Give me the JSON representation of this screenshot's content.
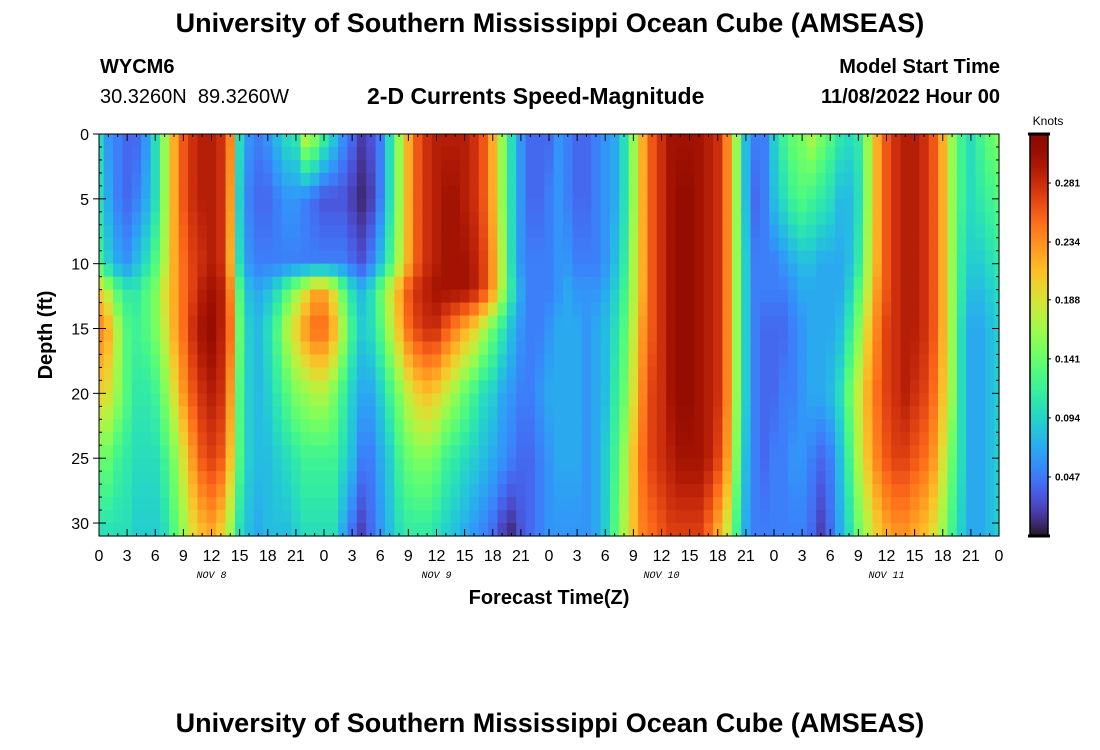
{
  "page": {
    "title": "University of Southern Mississippi Ocean Cube (AMSEAS)",
    "footer_title": "University of Southern Mississippi Ocean Cube (AMSEAS)",
    "station_id": "WYCM6",
    "station_coords": "30.3260N  89.3260W",
    "model_start_label": "Model Start Time",
    "model_start_value": "11/08/2022 Hour 00"
  },
  "chart_data": {
    "type": "heatmap",
    "title": "2-D Currents Speed-Magnitude",
    "xlabel": "Forecast Time(Z)",
    "ylabel": "Depth (ft)",
    "x_range_hours": [
      0,
      96
    ],
    "ylim": [
      0,
      31
    ],
    "y_ticks": [
      0,
      5,
      10,
      15,
      20,
      25,
      30
    ],
    "x_tick_hours": [
      0,
      3,
      6,
      9,
      12,
      15,
      18,
      21,
      24,
      27,
      30,
      33,
      36,
      39,
      42,
      45,
      48,
      51,
      54,
      57,
      60,
      63,
      66,
      69,
      72,
      75,
      78,
      81,
      84,
      87,
      90,
      93,
      96
    ],
    "x_tick_labels": [
      "0",
      "3",
      "6",
      "9",
      "12",
      "15",
      "18",
      "21",
      "0",
      "3",
      "6",
      "9",
      "12",
      "15",
      "18",
      "21",
      "0",
      "3",
      "6",
      "9",
      "12",
      "15",
      "18",
      "21",
      "0",
      "3",
      "6",
      "9",
      "12",
      "15",
      "18",
      "21",
      "0"
    ],
    "day_labels": [
      {
        "hour": 12,
        "text": "NOV 8"
      },
      {
        "hour": 36,
        "text": "NOV 9"
      },
      {
        "hour": 60,
        "text": "NOV 10"
      },
      {
        "hour": 84,
        "text": "NOV 11"
      }
    ],
    "colorbar": {
      "unit": "Knots",
      "min": 0.0,
      "max": 0.32,
      "ticks": [
        0.047,
        0.094,
        0.141,
        0.188,
        0.234,
        0.281
      ],
      "tick_labels": [
        "0.047",
        "0.094",
        "0.141",
        "0.188",
        "0.234",
        "0.281"
      ],
      "colormap": "turbo"
    },
    "profile_depths_ft": [
      0,
      5,
      10,
      12,
      15,
      20,
      25,
      31
    ],
    "profile_hours": [
      0,
      1,
      2,
      3,
      4,
      5,
      6,
      7,
      8,
      9,
      10,
      11,
      12,
      13,
      14,
      15,
      16,
      17,
      18,
      19,
      20,
      21,
      22,
      23,
      24,
      25,
      26,
      27,
      28,
      29,
      30,
      31,
      32,
      33,
      34,
      35,
      36,
      37,
      38,
      39,
      40,
      41,
      42,
      43,
      44,
      45,
      46,
      47,
      48,
      49,
      50,
      51,
      52,
      53,
      54,
      55,
      56,
      57,
      58,
      59,
      60,
      61,
      62,
      63,
      64,
      65,
      66,
      67,
      68,
      69,
      70,
      71,
      72,
      73,
      74,
      75,
      76,
      77,
      78,
      79,
      80,
      81,
      82,
      83,
      84,
      85,
      86,
      87,
      88,
      89,
      90,
      91,
      92,
      93,
      94,
      95,
      96
    ],
    "values_knots": [
      [
        0.1,
        0.06,
        0.05,
        0.04,
        0.04,
        0.06,
        0.1,
        0.16,
        0.22,
        0.26,
        0.28,
        0.29,
        0.29,
        0.28,
        0.24,
        0.1,
        0.06,
        0.05,
        0.06,
        0.08,
        0.1,
        0.11,
        0.18,
        0.16,
        0.12,
        0.09,
        0.06,
        0.04,
        0.02,
        0.03,
        0.05,
        0.1,
        0.16,
        0.22,
        0.26,
        0.28,
        0.29,
        0.29,
        0.29,
        0.29,
        0.28,
        0.26,
        0.22,
        0.16,
        0.1,
        0.06,
        0.04,
        0.04,
        0.04,
        0.06,
        0.05,
        0.04,
        0.04,
        0.05,
        0.06,
        0.07,
        0.1,
        0.16,
        0.22,
        0.26,
        0.28,
        0.3,
        0.3,
        0.3,
        0.3,
        0.29,
        0.28,
        0.24,
        0.16,
        0.08,
        0.05,
        0.05,
        0.09,
        0.12,
        0.14,
        0.15,
        0.17,
        0.15,
        0.13,
        0.11,
        0.1,
        0.11,
        0.16,
        0.22,
        0.26,
        0.28,
        0.29,
        0.29,
        0.28,
        0.26,
        0.22,
        0.16,
        0.12,
        0.1,
        0.12,
        0.14,
        0.15
      ],
      [
        0.1,
        0.07,
        0.05,
        0.04,
        0.05,
        0.07,
        0.1,
        0.16,
        0.22,
        0.26,
        0.28,
        0.29,
        0.29,
        0.28,
        0.23,
        0.09,
        0.05,
        0.04,
        0.04,
        0.05,
        0.06,
        0.06,
        0.05,
        0.04,
        0.03,
        0.03,
        0.03,
        0.02,
        0.01,
        0.02,
        0.05,
        0.1,
        0.16,
        0.22,
        0.26,
        0.28,
        0.29,
        0.3,
        0.3,
        0.29,
        0.28,
        0.26,
        0.22,
        0.16,
        0.1,
        0.06,
        0.04,
        0.04,
        0.05,
        0.06,
        0.05,
        0.04,
        0.04,
        0.05,
        0.06,
        0.07,
        0.1,
        0.16,
        0.22,
        0.26,
        0.28,
        0.3,
        0.31,
        0.31,
        0.3,
        0.29,
        0.28,
        0.24,
        0.16,
        0.08,
        0.04,
        0.05,
        0.08,
        0.1,
        0.12,
        0.13,
        0.12,
        0.11,
        0.1,
        0.08,
        0.08,
        0.1,
        0.16,
        0.22,
        0.26,
        0.28,
        0.29,
        0.29,
        0.28,
        0.26,
        0.22,
        0.16,
        0.12,
        0.1,
        0.11,
        0.12,
        0.13
      ],
      [
        0.12,
        0.09,
        0.07,
        0.06,
        0.08,
        0.1,
        0.13,
        0.17,
        0.22,
        0.25,
        0.27,
        0.28,
        0.29,
        0.28,
        0.22,
        0.1,
        0.06,
        0.05,
        0.05,
        0.05,
        0.05,
        0.05,
        0.05,
        0.05,
        0.05,
        0.05,
        0.05,
        0.04,
        0.03,
        0.05,
        0.08,
        0.12,
        0.17,
        0.22,
        0.26,
        0.28,
        0.29,
        0.3,
        0.3,
        0.3,
        0.29,
        0.27,
        0.23,
        0.17,
        0.1,
        0.06,
        0.05,
        0.05,
        0.05,
        0.06,
        0.06,
        0.05,
        0.05,
        0.05,
        0.06,
        0.08,
        0.11,
        0.17,
        0.22,
        0.26,
        0.28,
        0.3,
        0.31,
        0.31,
        0.3,
        0.29,
        0.28,
        0.24,
        0.16,
        0.09,
        0.05,
        0.05,
        0.05,
        0.06,
        0.07,
        0.08,
        0.08,
        0.07,
        0.07,
        0.07,
        0.08,
        0.11,
        0.17,
        0.22,
        0.26,
        0.28,
        0.29,
        0.29,
        0.28,
        0.26,
        0.22,
        0.16,
        0.11,
        0.09,
        0.09,
        0.1,
        0.11
      ],
      [
        0.2,
        0.17,
        0.13,
        0.11,
        0.11,
        0.13,
        0.15,
        0.19,
        0.22,
        0.25,
        0.27,
        0.29,
        0.3,
        0.29,
        0.24,
        0.13,
        0.08,
        0.07,
        0.08,
        0.1,
        0.13,
        0.16,
        0.19,
        0.22,
        0.22,
        0.19,
        0.14,
        0.1,
        0.08,
        0.1,
        0.14,
        0.18,
        0.22,
        0.26,
        0.28,
        0.29,
        0.3,
        0.3,
        0.3,
        0.3,
        0.29,
        0.27,
        0.23,
        0.17,
        0.11,
        0.07,
        0.05,
        0.05,
        0.05,
        0.06,
        0.07,
        0.06,
        0.06,
        0.06,
        0.07,
        0.09,
        0.12,
        0.17,
        0.22,
        0.26,
        0.28,
        0.3,
        0.31,
        0.31,
        0.3,
        0.29,
        0.28,
        0.24,
        0.16,
        0.09,
        0.05,
        0.05,
        0.05,
        0.05,
        0.06,
        0.07,
        0.07,
        0.07,
        0.07,
        0.07,
        0.09,
        0.13,
        0.18,
        0.23,
        0.26,
        0.28,
        0.29,
        0.29,
        0.28,
        0.26,
        0.22,
        0.16,
        0.11,
        0.08,
        0.08,
        0.09,
        0.1
      ],
      [
        0.24,
        0.22,
        0.17,
        0.13,
        0.12,
        0.13,
        0.15,
        0.18,
        0.22,
        0.25,
        0.28,
        0.3,
        0.31,
        0.29,
        0.25,
        0.14,
        0.09,
        0.08,
        0.1,
        0.13,
        0.17,
        0.2,
        0.23,
        0.25,
        0.25,
        0.22,
        0.17,
        0.12,
        0.09,
        0.1,
        0.13,
        0.17,
        0.21,
        0.25,
        0.27,
        0.28,
        0.28,
        0.26,
        0.24,
        0.22,
        0.2,
        0.17,
        0.14,
        0.11,
        0.08,
        0.06,
        0.05,
        0.05,
        0.06,
        0.07,
        0.07,
        0.07,
        0.06,
        0.07,
        0.08,
        0.1,
        0.13,
        0.18,
        0.23,
        0.26,
        0.28,
        0.3,
        0.31,
        0.31,
        0.3,
        0.29,
        0.28,
        0.24,
        0.16,
        0.09,
        0.05,
        0.04,
        0.04,
        0.04,
        0.05,
        0.06,
        0.07,
        0.07,
        0.07,
        0.08,
        0.11,
        0.15,
        0.2,
        0.24,
        0.27,
        0.28,
        0.29,
        0.29,
        0.28,
        0.26,
        0.22,
        0.16,
        0.1,
        0.07,
        0.07,
        0.08,
        0.09
      ],
      [
        0.2,
        0.19,
        0.16,
        0.13,
        0.11,
        0.11,
        0.12,
        0.15,
        0.19,
        0.23,
        0.26,
        0.28,
        0.29,
        0.28,
        0.23,
        0.13,
        0.09,
        0.08,
        0.09,
        0.11,
        0.13,
        0.15,
        0.16,
        0.17,
        0.17,
        0.15,
        0.12,
        0.09,
        0.07,
        0.07,
        0.09,
        0.12,
        0.15,
        0.18,
        0.2,
        0.21,
        0.2,
        0.18,
        0.16,
        0.14,
        0.12,
        0.1,
        0.09,
        0.07,
        0.06,
        0.05,
        0.05,
        0.06,
        0.07,
        0.07,
        0.07,
        0.07,
        0.06,
        0.07,
        0.08,
        0.11,
        0.14,
        0.19,
        0.24,
        0.27,
        0.28,
        0.3,
        0.31,
        0.31,
        0.3,
        0.29,
        0.28,
        0.24,
        0.16,
        0.09,
        0.05,
        0.04,
        0.04,
        0.05,
        0.05,
        0.06,
        0.07,
        0.07,
        0.08,
        0.1,
        0.14,
        0.18,
        0.22,
        0.25,
        0.27,
        0.28,
        0.29,
        0.28,
        0.27,
        0.25,
        0.21,
        0.16,
        0.1,
        0.07,
        0.07,
        0.08,
        0.09
      ],
      [
        0.14,
        0.14,
        0.12,
        0.11,
        0.1,
        0.1,
        0.1,
        0.12,
        0.15,
        0.19,
        0.23,
        0.26,
        0.27,
        0.26,
        0.21,
        0.13,
        0.09,
        0.08,
        0.08,
        0.09,
        0.1,
        0.11,
        0.12,
        0.12,
        0.12,
        0.12,
        0.1,
        0.08,
        0.05,
        0.05,
        0.07,
        0.09,
        0.12,
        0.14,
        0.15,
        0.15,
        0.14,
        0.12,
        0.11,
        0.1,
        0.09,
        0.08,
        0.07,
        0.06,
        0.05,
        0.04,
        0.04,
        0.05,
        0.06,
        0.07,
        0.07,
        0.07,
        0.06,
        0.07,
        0.09,
        0.12,
        0.16,
        0.21,
        0.25,
        0.27,
        0.28,
        0.29,
        0.3,
        0.3,
        0.3,
        0.29,
        0.27,
        0.23,
        0.15,
        0.08,
        0.05,
        0.04,
        0.05,
        0.05,
        0.06,
        0.06,
        0.05,
        0.04,
        0.05,
        0.08,
        0.12,
        0.17,
        0.21,
        0.24,
        0.26,
        0.27,
        0.27,
        0.26,
        0.25,
        0.23,
        0.19,
        0.14,
        0.1,
        0.07,
        0.07,
        0.08,
        0.09
      ],
      [
        0.1,
        0.1,
        0.1,
        0.1,
        0.09,
        0.09,
        0.09,
        0.1,
        0.13,
        0.16,
        0.19,
        0.21,
        0.22,
        0.2,
        0.16,
        0.1,
        0.08,
        0.07,
        0.08,
        0.08,
        0.08,
        0.09,
        0.1,
        0.1,
        0.1,
        0.1,
        0.07,
        0.04,
        0.02,
        0.04,
        0.06,
        0.08,
        0.1,
        0.11,
        0.11,
        0.11,
        0.1,
        0.09,
        0.08,
        0.07,
        0.06,
        0.05,
        0.04,
        0.02,
        0.01,
        0.03,
        0.04,
        0.05,
        0.06,
        0.06,
        0.06,
        0.06,
        0.06,
        0.07,
        0.09,
        0.13,
        0.17,
        0.21,
        0.24,
        0.25,
        0.26,
        0.27,
        0.27,
        0.27,
        0.27,
        0.25,
        0.22,
        0.18,
        0.12,
        0.07,
        0.05,
        0.05,
        0.05,
        0.05,
        0.05,
        0.05,
        0.04,
        0.02,
        0.04,
        0.07,
        0.1,
        0.14,
        0.17,
        0.2,
        0.22,
        0.23,
        0.23,
        0.22,
        0.21,
        0.19,
        0.16,
        0.12,
        0.09,
        0.07,
        0.07,
        0.08,
        0.09
      ]
    ]
  }
}
